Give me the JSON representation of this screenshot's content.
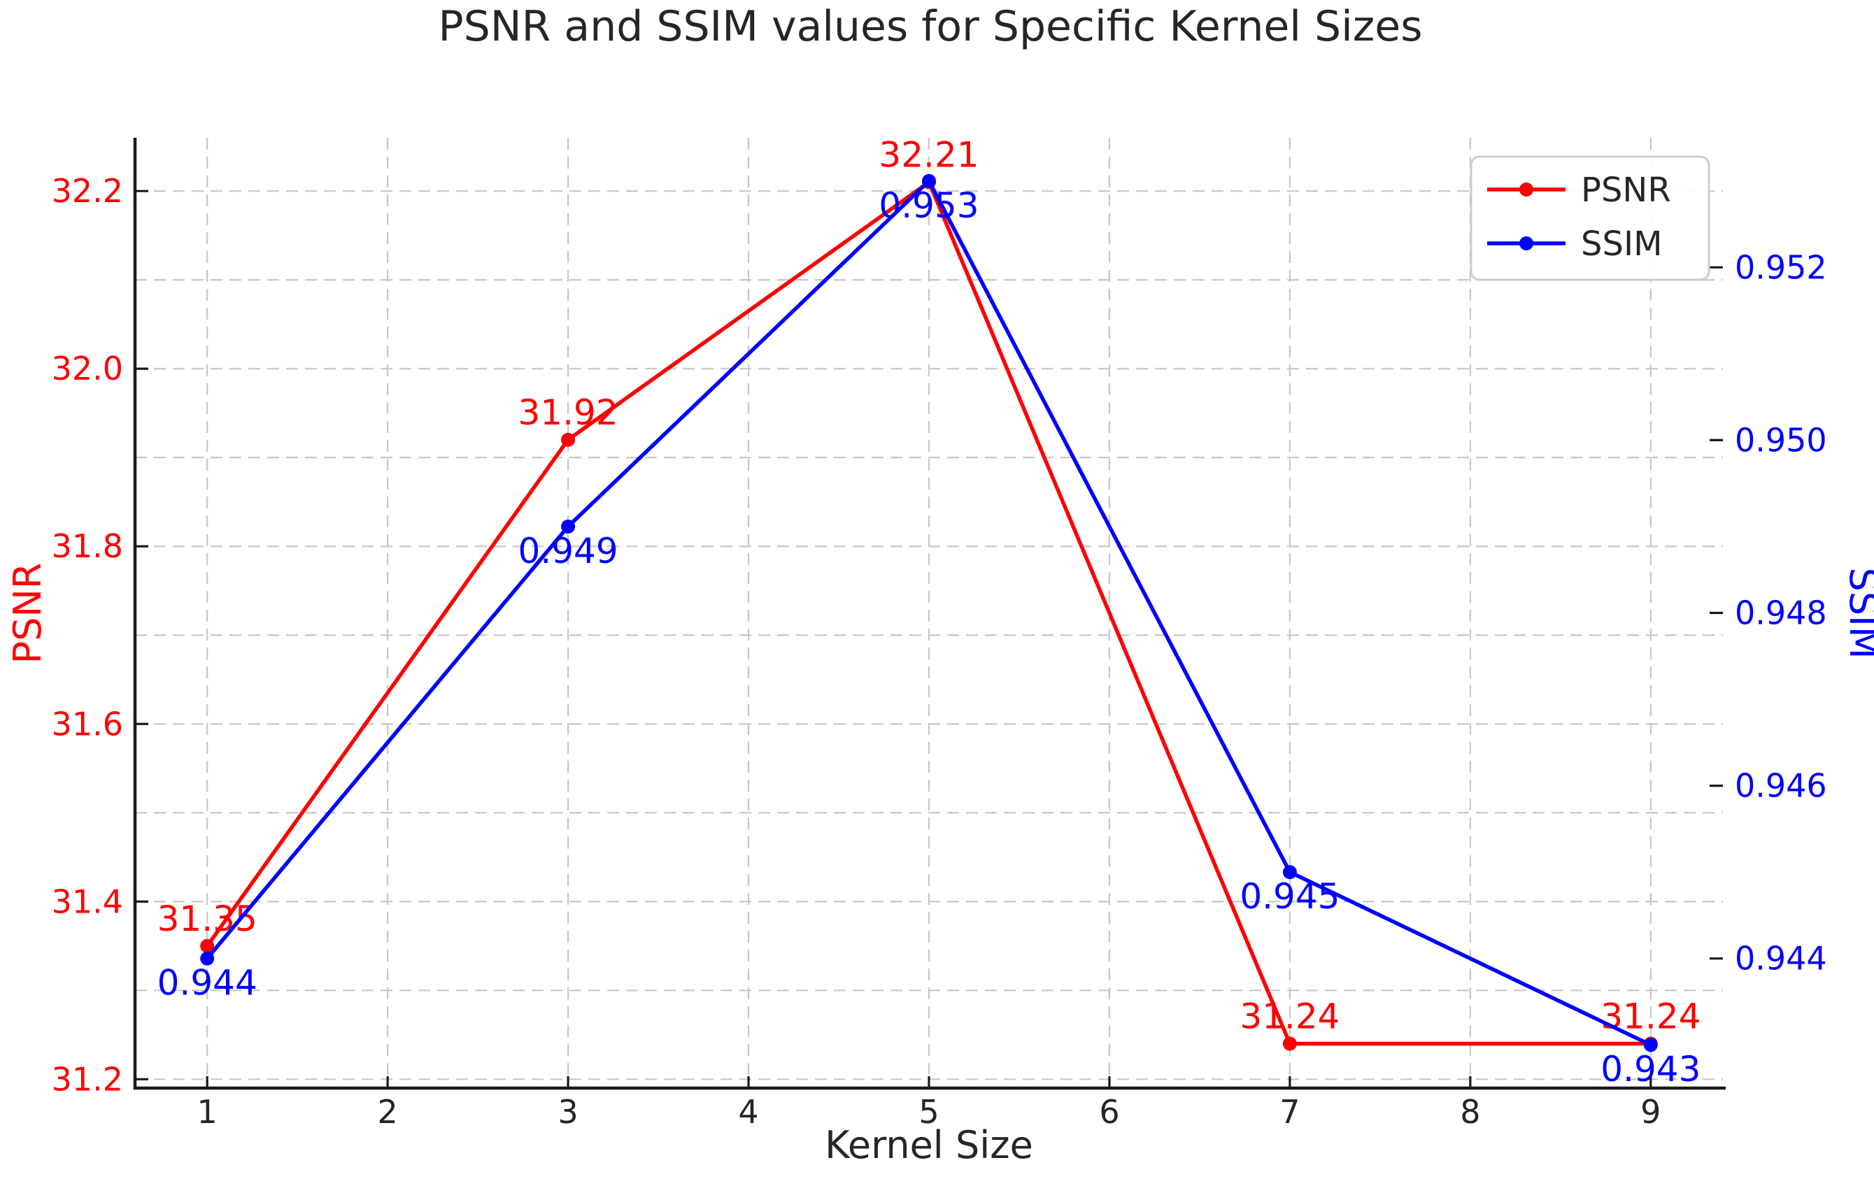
{
  "figure": {
    "background": "#ffffff"
  },
  "title": {
    "text": "PSNR and SSIM values for Specific Kernel Sizes",
    "color": "#262626"
  },
  "chart_data": {
    "type": "line",
    "x": [
      1,
      3,
      5,
      7,
      9
    ],
    "xlabel": "Kernel Size",
    "xlim": [
      0.6,
      9.4
    ],
    "x_ticks": [
      1,
      2,
      3,
      4,
      5,
      6,
      7,
      8,
      9
    ],
    "x_tick_labels": [
      "1",
      "2",
      "3",
      "4",
      "5",
      "6",
      "7",
      "8",
      "9"
    ],
    "series": [
      {
        "name": "PSNR",
        "axis": "left",
        "color": "#ff0000",
        "values": [
          31.35,
          31.92,
          32.21,
          31.24,
          31.24
        ],
        "point_labels": [
          "31.35",
          "31.92",
          "32.21",
          "31.24",
          "31.24"
        ],
        "label_side": "above"
      },
      {
        "name": "SSIM",
        "axis": "right",
        "color": "#0000ff",
        "values": [
          0.944,
          0.949,
          0.953,
          0.945,
          0.943
        ],
        "point_labels": [
          "0.944",
          "0.949",
          "0.953",
          "0.945",
          "0.943"
        ],
        "label_side": "below"
      }
    ],
    "left_axis": {
      "label": "PSNR",
      "color": "#ff0000",
      "lim": [
        31.19,
        32.26
      ],
      "ticks": [
        31.2,
        31.4,
        31.6,
        31.8,
        32.0,
        32.2
      ],
      "tick_labels": [
        "31.2",
        "31.4",
        "31.6",
        "31.8",
        "32.0",
        "32.2"
      ],
      "minor_ticks": [
        31.3,
        31.5,
        31.7,
        31.9,
        32.1
      ]
    },
    "right_axis": {
      "label": "SSIM",
      "color": "#0000ff",
      "lim": [
        0.9425,
        0.9535
      ],
      "ticks": [
        0.944,
        0.946,
        0.948,
        0.95,
        0.952
      ],
      "tick_labels": [
        "0.944",
        "0.946",
        "0.948",
        "0.950",
        "0.952"
      ]
    },
    "legend": {
      "position": "upper right",
      "entries": [
        "PSNR",
        "SSIM"
      ]
    },
    "grid": {
      "on": true,
      "color": "#c7c7c7",
      "style": "dashed"
    },
    "tick_color": "#262626",
    "spine_color": "#1a1a1a"
  }
}
